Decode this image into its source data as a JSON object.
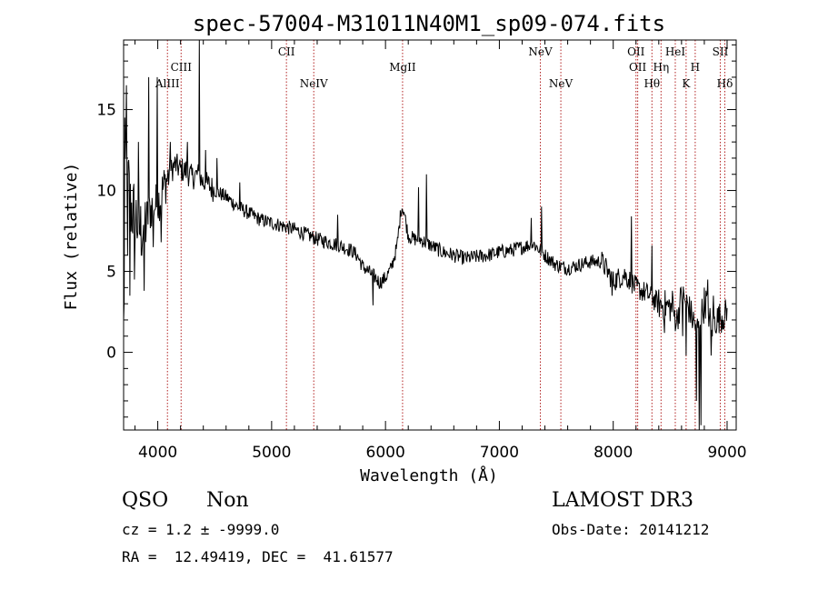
{
  "chart_data": {
    "type": "line",
    "title": "spec-57004-M31011N40M1_sp09-074.fits",
    "xlabel": "Wavelength (Å)",
    "ylabel": "Flux (relative)",
    "xlim": [
      3700,
      9080
    ],
    "ylim": [
      -4.8,
      19.3
    ],
    "xticks": [
      4000,
      5000,
      6000,
      7000,
      8000,
      9000
    ],
    "yticks": [
      0,
      5,
      10,
      15
    ],
    "grid": false,
    "legend": "none",
    "line_color": "#000000",
    "marker_color": "#b22222",
    "lines": [
      {
        "label": "AlIII",
        "wavelength": 4085,
        "row": 3
      },
      {
        "label": "CIII",
        "wavelength": 4205,
        "row": 2
      },
      {
        "label": "CII",
        "wavelength": 5130,
        "row": 1
      },
      {
        "label": "NeIV",
        "wavelength": 5370,
        "row": 3
      },
      {
        "label": "MgII",
        "wavelength": 6150,
        "row": 2
      },
      {
        "label": "NeV",
        "wavelength": 7360,
        "row": 1
      },
      {
        "label": "NeV",
        "wavelength": 7540,
        "row": 3
      },
      {
        "label": "OII",
        "wavelength": 8200,
        "row": 1
      },
      {
        "label": "OII",
        "wavelength": 8215,
        "row": 2
      },
      {
        "label": "Hθ",
        "wavelength": 8340,
        "row": 3
      },
      {
        "label": "Hη",
        "wavelength": 8420,
        "row": 2
      },
      {
        "label": "HeI",
        "wavelength": 8545,
        "row": 1
      },
      {
        "label": "K",
        "wavelength": 8640,
        "row": 3
      },
      {
        "label": "H",
        "wavelength": 8720,
        "row": 2
      },
      {
        "label": "SII",
        "wavelength": 8940,
        "row": 1
      },
      {
        "label": "Hδ",
        "wavelength": 8980,
        "row": 3
      }
    ],
    "spectrum_anchors": [
      [
        3700,
        1.2
      ],
      [
        3720,
        12.5
      ],
      [
        3760,
        9.0
      ],
      [
        3800,
        8.5
      ],
      [
        3850,
        7.5
      ],
      [
        3900,
        8.2
      ],
      [
        3950,
        9.0
      ],
      [
        4000,
        9.2
      ],
      [
        4050,
        10.2
      ],
      [
        4100,
        11.0
      ],
      [
        4150,
        11.6
      ],
      [
        4200,
        11.3
      ],
      [
        4250,
        11.2
      ],
      [
        4300,
        10.8
      ],
      [
        4350,
        11.0
      ],
      [
        4400,
        10.5
      ],
      [
        4450,
        10.3
      ],
      [
        4500,
        10.0
      ],
      [
        4600,
        9.6
      ],
      [
        4700,
        9.0
      ],
      [
        4800,
        8.6
      ],
      [
        4900,
        8.2
      ],
      [
        5000,
        8.0
      ],
      [
        5100,
        7.8
      ],
      [
        5200,
        7.6
      ],
      [
        5300,
        7.3
      ],
      [
        5400,
        7.0
      ],
      [
        5500,
        6.8
      ],
      [
        5600,
        6.6
      ],
      [
        5700,
        6.3
      ],
      [
        5750,
        6.0
      ],
      [
        5800,
        5.3
      ],
      [
        5850,
        5.0
      ],
      [
        5900,
        4.7
      ],
      [
        5950,
        4.3
      ],
      [
        6000,
        4.6
      ],
      [
        6050,
        5.2
      ],
      [
        6100,
        6.5
      ],
      [
        6140,
        9.0
      ],
      [
        6160,
        8.8
      ],
      [
        6200,
        7.2
      ],
      [
        6250,
        7.0
      ],
      [
        6300,
        7.0
      ],
      [
        6400,
        6.6
      ],
      [
        6500,
        6.2
      ],
      [
        6600,
        6.0
      ],
      [
        6700,
        5.8
      ],
      [
        6800,
        5.9
      ],
      [
        6900,
        6.0
      ],
      [
        7000,
        6.2
      ],
      [
        7100,
        6.3
      ],
      [
        7200,
        6.5
      ],
      [
        7300,
        6.7
      ],
      [
        7400,
        6.0
      ],
      [
        7500,
        5.4
      ],
      [
        7600,
        5.2
      ],
      [
        7700,
        5.4
      ],
      [
        7800,
        5.6
      ],
      [
        7900,
        5.6
      ],
      [
        7950,
        5.0
      ],
      [
        8000,
        4.4
      ],
      [
        8100,
        4.8
      ],
      [
        8200,
        4.0
      ],
      [
        8300,
        3.6
      ],
      [
        8400,
        3.0
      ],
      [
        8500,
        2.8
      ],
      [
        8560,
        2.0
      ],
      [
        8600,
        3.5
      ],
      [
        8650,
        3.0
      ],
      [
        8700,
        2.0
      ],
      [
        8740,
        1.5
      ],
      [
        8780,
        2.5
      ],
      [
        8820,
        3.2
      ],
      [
        8860,
        1.5
      ],
      [
        8900,
        2.0
      ],
      [
        8950,
        2.2
      ],
      [
        9000,
        2.4
      ]
    ],
    "spectrum_spikes": [
      [
        3710,
        14.5
      ],
      [
        3723,
        16.5
      ],
      [
        3735,
        6.0
      ],
      [
        3755,
        3.5
      ],
      [
        3795,
        4.5
      ],
      [
        3830,
        13.0
      ],
      [
        3880,
        3.8
      ],
      [
        3920,
        17.0
      ],
      [
        3960,
        6.5
      ],
      [
        3995,
        17.0
      ],
      [
        4030,
        6.8
      ],
      [
        4110,
        13.0
      ],
      [
        4260,
        13.0
      ],
      [
        4365,
        19.3
      ],
      [
        4420,
        12.5
      ],
      [
        4520,
        12.0
      ],
      [
        4720,
        10.5
      ],
      [
        5580,
        8.5
      ],
      [
        5890,
        2.9
      ],
      [
        6290,
        10.2
      ],
      [
        6360,
        11.0
      ],
      [
        7280,
        8.3
      ],
      [
        7370,
        9.0
      ],
      [
        7990,
        3.5
      ],
      [
        8160,
        8.4
      ],
      [
        8340,
        6.6
      ],
      [
        8450,
        1.2
      ],
      [
        8520,
        3.8
      ],
      [
        8610,
        1.0
      ],
      [
        8640,
        -0.2
      ],
      [
        8730,
        -3.0
      ],
      [
        8755,
        -4.8
      ],
      [
        8770,
        -4.5
      ],
      [
        8800,
        4.0
      ],
      [
        8830,
        4.5
      ],
      [
        8860,
        -0.2
      ],
      [
        8880,
        3.5
      ]
    ]
  },
  "info": {
    "class": "QSO",
    "subclass": "Non",
    "survey": "LAMOST DR3",
    "cz": "cz = 1.2 ± -9999.0",
    "obs_date": "Obs-Date: 20141212",
    "coords": "RA =  12.49419, DEC =  41.61577"
  }
}
